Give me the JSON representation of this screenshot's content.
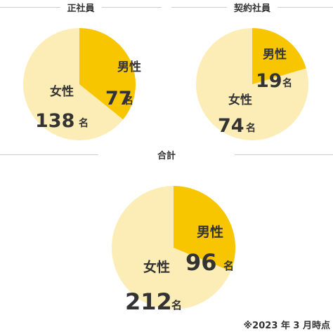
{
  "headings": {
    "seishain": "正社員",
    "keiyaku": "契約社員",
    "total": "合計"
  },
  "unit": "名",
  "footnote": "※2023 年 3 月時点",
  "colors": {
    "male": "#f7c600",
    "female": "#fcedb7",
    "stroke": "#ffffff"
  },
  "chart_data": [
    {
      "type": "pie",
      "title": "正社員",
      "categories": [
        "男性",
        "女性"
      ],
      "values": [
        77,
        138
      ]
    },
    {
      "type": "pie",
      "title": "契約社員",
      "categories": [
        "男性",
        "女性"
      ],
      "values": [
        19,
        74
      ]
    },
    {
      "type": "pie",
      "title": "合計",
      "categories": [
        "男性",
        "女性"
      ],
      "values": [
        96,
        212
      ]
    }
  ]
}
